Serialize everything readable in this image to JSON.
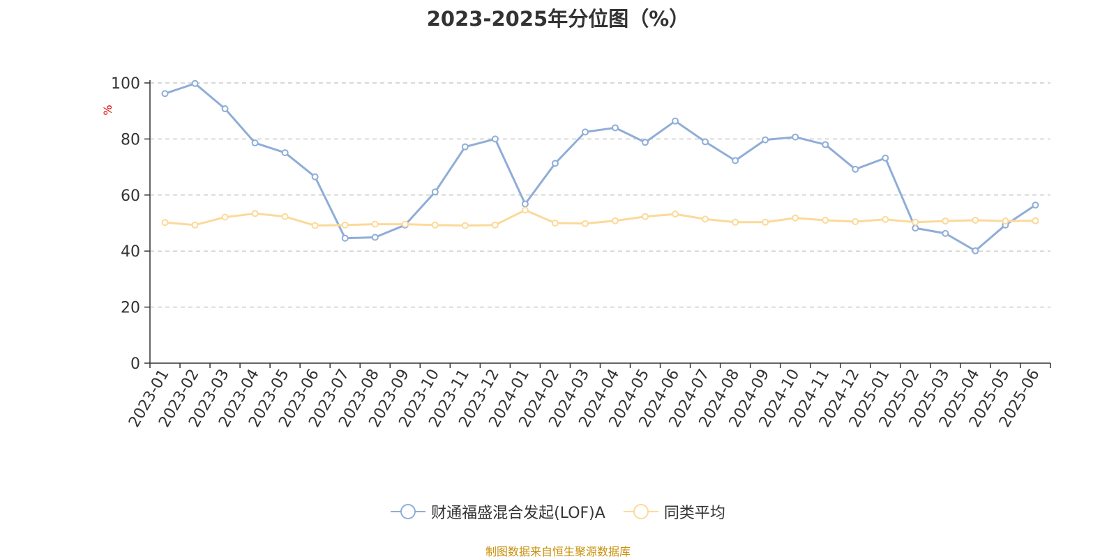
{
  "chart_data": {
    "type": "line",
    "title": "2023-2025年分位图（%）",
    "ylabel": "%",
    "ylim": [
      0,
      100
    ],
    "y_ticks": [
      "0",
      "20",
      "40",
      "60",
      "80",
      "100"
    ],
    "grid": true,
    "legend_position": "bottom",
    "categories": [
      "2023-01",
      "2023-02",
      "2023-03",
      "2023-04",
      "2023-05",
      "2023-06",
      "2023-07",
      "2023-08",
      "2023-09",
      "2023-10",
      "2023-11",
      "2023-12",
      "2024-01",
      "2024-02",
      "2024-03",
      "2024-04",
      "2024-05",
      "2024-06",
      "2024-07",
      "2024-08",
      "2024-09",
      "2024-10",
      "2024-11",
      "2024-12",
      "2025-01",
      "2025-02",
      "2025-03",
      "2025-04",
      "2025-05",
      "2025-06"
    ],
    "series": [
      {
        "name": "财通福盛混合发起(LOF)A",
        "color": "#8fadd8",
        "values": [
          96.2,
          99.8,
          90.8,
          78.6,
          75.1,
          66.5,
          44.6,
          44.9,
          49.3,
          61.1,
          77.2,
          80.0,
          56.8,
          71.3,
          82.5,
          84.0,
          78.8,
          86.4,
          79.0,
          72.3,
          79.7,
          80.7,
          78.0,
          69.2,
          73.2,
          48.2,
          46.3,
          40.1,
          49.3,
          56.4
        ]
      },
      {
        "name": "同类平均",
        "color": "#fcd99a",
        "values": [
          50.2,
          49.3,
          52.1,
          53.4,
          52.3,
          49.1,
          49.3,
          49.6,
          49.6,
          49.3,
          49.1,
          49.3,
          54.6,
          50.0,
          49.8,
          50.8,
          52.3,
          53.2,
          51.4,
          50.3,
          50.3,
          51.8,
          51.0,
          50.5,
          51.3,
          50.3,
          50.7,
          51.0,
          50.7,
          50.8
        ]
      }
    ]
  },
  "footer": {
    "source": "制图数据来自恒生聚源数据库"
  }
}
